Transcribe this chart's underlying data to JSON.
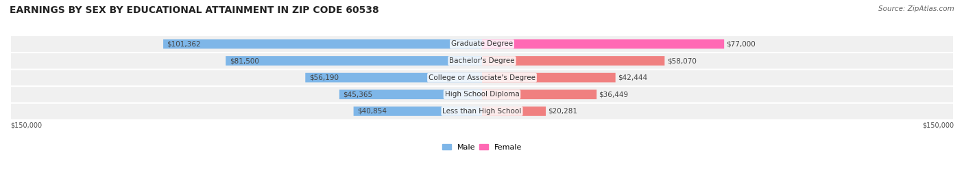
{
  "title": "EARNINGS BY SEX BY EDUCATIONAL ATTAINMENT IN ZIP CODE 60538",
  "source": "Source: ZipAtlas.com",
  "categories": [
    "Less than High School",
    "High School Diploma",
    "College or Associate's Degree",
    "Bachelor's Degree",
    "Graduate Degree"
  ],
  "male_values": [
    40854,
    45365,
    56190,
    81500,
    101362
  ],
  "female_values": [
    20281,
    36449,
    42444,
    58070,
    77000
  ],
  "male_labels": [
    "$40,854",
    "$45,365",
    "$56,190",
    "$81,500",
    "$101,362"
  ],
  "female_labels": [
    "$20,281",
    "$36,449",
    "$42,444",
    "$58,070",
    "$77,000"
  ],
  "male_color": "#7EB6E8",
  "female_color": "#F08080",
  "female_color_grad": "#FF69B4",
  "background_row_color": "#F0F0F0",
  "max_value": 150000,
  "xlim": 150000,
  "title_fontsize": 10,
  "label_fontsize": 7.5,
  "category_fontsize": 7.5,
  "legend_male_color": "#7EB6E8",
  "legend_female_color": "#FF69B4"
}
